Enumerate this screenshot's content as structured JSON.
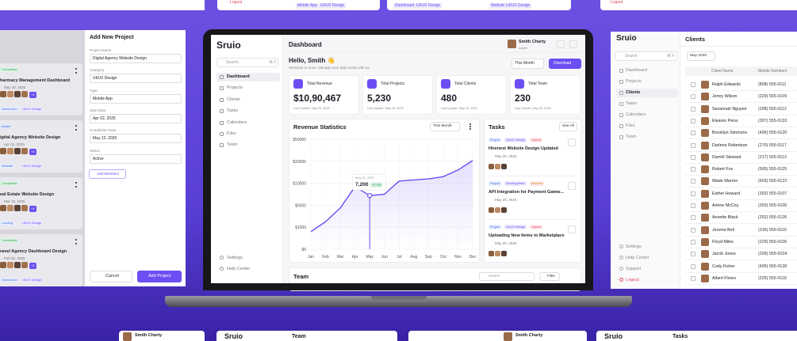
{
  "chart_data": {
    "type": "line",
    "title": "Revenue Statistics",
    "filter": "This Month",
    "categories": [
      "Jan",
      "Feb",
      "Mar",
      "Apr",
      "May",
      "Jun",
      "Jul",
      "Aug",
      "Sep",
      "Oct",
      "Nov",
      "Dec"
    ],
    "values": [
      800,
      2000,
      4500,
      9200,
      7200,
      7500,
      11000,
      11500,
      12000,
      13000,
      16000,
      21000
    ],
    "value_labels": [
      null,
      null,
      null,
      null,
      "7,200",
      null,
      null,
      null,
      null,
      null,
      null,
      null
    ],
    "annotations": [
      "May 25, 2025",
      "+3.4%"
    ],
    "color": "#6c4ef2",
    "ylim": [
      0,
      50000
    ],
    "yticks": [
      {
        "value": 0,
        "label": "$0"
      },
      {
        "value": 1000,
        "label": "$1000"
      },
      {
        "value": 5000,
        "label": "$5000"
      },
      {
        "value": 10000,
        "label": "$10000"
      },
      {
        "value": 20000,
        "label": "$20000"
      },
      {
        "value": 50000,
        "label": "$50000"
      }
    ],
    "grid": true
  },
  "dashboard": {
    "brand": "Sruio",
    "search": "Search",
    "shortcut": "⌘ F",
    "nav": [
      "Dashboard",
      "Projects",
      "Clients",
      "Tasks",
      "Calendars",
      "Files",
      "Team"
    ],
    "nav_bottom": [
      "Settings",
      "Help Center"
    ],
    "header": "Dashboard",
    "user": {
      "name": "Smith Charty",
      "role": "Admin"
    },
    "greeting": "Hello, Smith 👋",
    "subtitle": "Welcome to sruio, Manage your data easily with us",
    "period": "This Month",
    "download": "Download",
    "stats": [
      {
        "label": "Total Revenue",
        "value": "$10,90,467",
        "updated": "Last Update: May 25, 2025"
      },
      {
        "label": "Total Projects",
        "value": "5,230",
        "updated": "Last Update: May 25, 2025"
      },
      {
        "label": "Total Clients",
        "value": "480",
        "updated": "Last Update: May 25, 2025"
      },
      {
        "label": "Total Team",
        "value": "230",
        "updated": "Last Update: May 25, 2025"
      }
    ],
    "tasks": {
      "title": "Tasks",
      "see_all": "See All",
      "items": [
        {
          "tags": [
            "Project",
            "UI/UX Design",
            "Urgent"
          ],
          "title": "Hirenest Website Design Updated",
          "date": "May 25, 2025"
        },
        {
          "tags": [
            "Project",
            "Development",
            "Medium"
          ],
          "title": "API Integration for Payment Gatew...",
          "date": "May 25, 2025"
        },
        {
          "tags": [
            "Project",
            "UI/UX Design",
            "Urgent"
          ],
          "title": "Uploading New Items to Marketplace",
          "date": "May 25, 2025"
        }
      ]
    },
    "team": {
      "title": "Team",
      "search": "Search",
      "filter": "Filter"
    }
  },
  "add_project": {
    "title": "Add New Project",
    "fields": [
      {
        "label": "Project Name",
        "value": "Digital Agency Website Design"
      },
      {
        "label": "Category",
        "value": "UI/UX Design"
      },
      {
        "label": "Type",
        "value": "Mobile App"
      },
      {
        "label": "Start Date",
        "value": "Apr 02, 2025"
      },
      {
        "label": "Completion Date",
        "value": "May 12, 2025"
      },
      {
        "label": "Status",
        "value": "Active"
      }
    ],
    "add_members": "Add Members",
    "cancel": "Cancel",
    "submit": "Add Project"
  },
  "projects": [
    {
      "status": "Completed",
      "title": "harmacy Management Dashboard",
      "date": "May 20, 2025",
      "more": "+4",
      "tags": [
        "Dashboard",
        "UI/UX Design"
      ]
    },
    {
      "status": "Active",
      "title": "igital Agency Website Design",
      "date": "Apr 02, 2025",
      "more": "+3",
      "tags": [
        "Website",
        "UI/UX Design"
      ]
    },
    {
      "status": "Completed",
      "title": "eal Estate Website Design",
      "date": "Mar 20, 2025",
      "more": "+4",
      "tags": [
        "Landing",
        "UI/UX Design"
      ]
    },
    {
      "status": "Completed",
      "title": "ravel Agency Dashboard Design",
      "date": "Feb 05, 2025",
      "more": "+2",
      "tags": [
        "Dashboard",
        "UI/UX Design"
      ]
    }
  ],
  "clients": {
    "brand": "Sruio",
    "search": "Search",
    "shortcut": "⌘ F",
    "nav": [
      "Dashboard",
      "Projects",
      "Clients",
      "Tasks",
      "Calendars",
      "Files",
      "Team"
    ],
    "nav_bottom": [
      "Settings",
      "Help Center",
      "Support",
      "Logout"
    ],
    "title": "Clients",
    "date": "May 2025",
    "columns": [
      "Client Name",
      "Mobile Numbers"
    ],
    "rows": [
      [
        "Ralph Edwards",
        "(808) 555-0111"
      ],
      [
        "Jenny Wilson",
        "(229) 555-0109"
      ],
      [
        "Savannah Nguyen",
        "(208) 555-0112"
      ],
      [
        "Eleanor Pena",
        "(307) 555-0133"
      ],
      [
        "Brooklyn Simmons",
        "(406) 555-0120"
      ],
      [
        "Darlene Robertson",
        "(270) 555-0117"
      ],
      [
        "Darrell Steward",
        "(217) 555-0113"
      ],
      [
        "Robert Fox",
        "(505) 555-0125"
      ],
      [
        "Wade Warren",
        "(603) 555-0123"
      ],
      [
        "Esther Howard",
        "(302) 555-0107"
      ],
      [
        "Arlene McCoy",
        "(303) 555-0105"
      ],
      [
        "Annette Black",
        "(252) 555-0126"
      ],
      [
        "Jerome Bell",
        "(316) 555-0116"
      ],
      [
        "Floyd Miles",
        "(229) 555-0106"
      ],
      [
        "Jacob Jones",
        "(209) 555-0104"
      ],
      [
        "Cody Fisher",
        "(405) 555-0128"
      ],
      [
        "Albert Flores",
        "(225) 555-0118"
      ]
    ]
  },
  "fragments": {
    "top": [
      "Logout",
      "Mobile App",
      "UI/UX Design",
      "Dashboard",
      "UI/UX Design",
      "Website",
      "UI/UX Design",
      "Logout"
    ],
    "bottom": [
      "Smith Charty",
      "Sruio",
      "Team",
      "Smith Charty",
      "Sruio",
      "Tasks"
    ]
  }
}
